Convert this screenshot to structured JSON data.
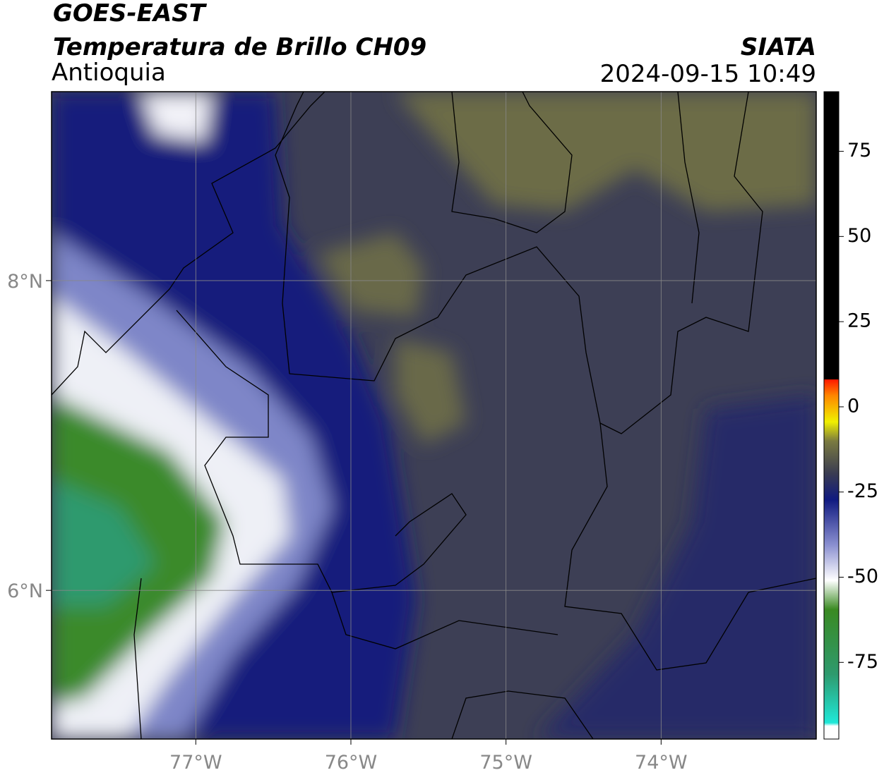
{
  "header": {
    "satellite": "GOES-EAST",
    "product": "Temperatura de Brillo CH09",
    "region": "Antioquia",
    "source": "SIATA",
    "datetime": "2024-09-15 10:49"
  },
  "map": {
    "xlim": [
      -77.93,
      -73.0
    ],
    "ylim": [
      5.04,
      9.22
    ],
    "xticks": [
      {
        "value": -77,
        "label": "77°W"
      },
      {
        "value": -76,
        "label": "76°W"
      },
      {
        "value": -75,
        "label": "75°W"
      },
      {
        "value": -74,
        "label": "74°W"
      }
    ],
    "yticks": [
      {
        "value": 6,
        "label": "6°N"
      },
      {
        "value": 8,
        "label": "8°N"
      }
    ],
    "grid": true
  },
  "colorbar": {
    "ylim": [
      -97.5,
      92.5
    ],
    "yticks": [
      75,
      50,
      25,
      0,
      -25,
      -50,
      -75
    ]
  }
}
